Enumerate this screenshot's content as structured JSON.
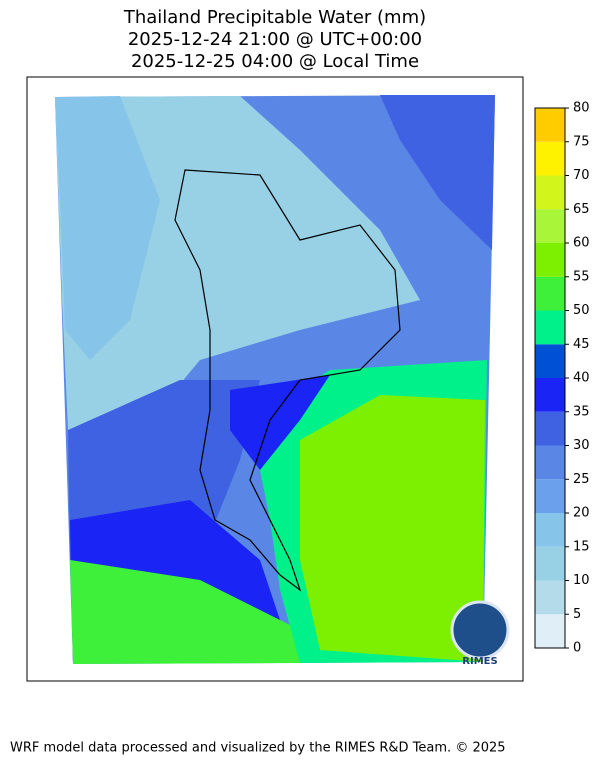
{
  "title": [
    "Thailand Precipitable Water (mm)",
    "2025-12-24 21:00 @ UTC+00:00",
    "2025-12-25 04:00 @ Local Time"
  ],
  "colorbar": {
    "lim": [
      0,
      80
    ],
    "ticks": [
      0,
      5,
      10,
      15,
      20,
      25,
      30,
      35,
      40,
      45,
      50,
      55,
      60,
      65,
      70,
      75,
      80
    ],
    "colors": [
      "#e0eef8",
      "#b4dbe9",
      "#98d1e6",
      "#86c4ea",
      "#6aa0ec",
      "#5a86e6",
      "#3f62e2",
      "#1a24f5",
      "#0050d6",
      "#00f08a",
      "#3ef03a",
      "#7cf000",
      "#a8f53a",
      "#d2f51c",
      "#fff200",
      "#ffcc00"
    ]
  },
  "logo": "RIMES",
  "footer": "WRF model data processed and visualized by the RIMES R&D Team. © 2025"
}
